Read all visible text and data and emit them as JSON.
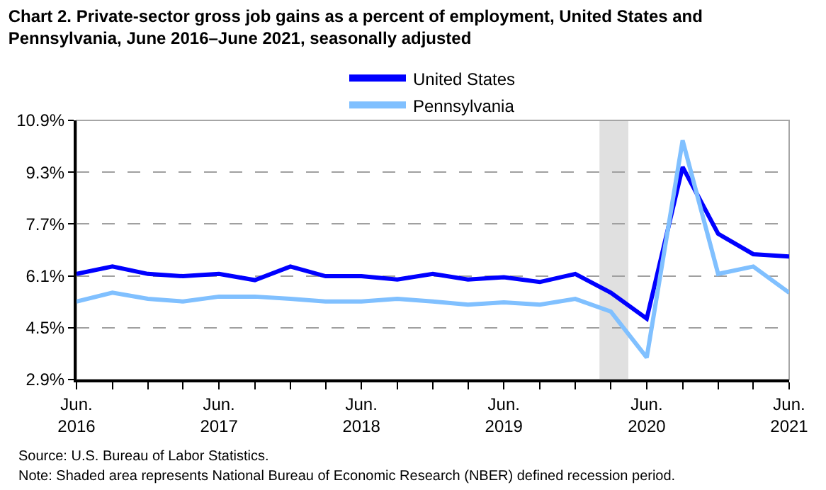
{
  "chart_data": {
    "type": "line",
    "title": "Chart 2. Private-sector gross job gains as a percent of employment, United States and Pennsylvania, June 2016–June 2021, seasonally adjusted",
    "x": [
      "2016-06",
      "2016-09",
      "2016-12",
      "2017-03",
      "2017-06",
      "2017-09",
      "2017-12",
      "2018-03",
      "2018-06",
      "2018-09",
      "2018-12",
      "2019-03",
      "2019-06",
      "2019-09",
      "2019-12",
      "2020-03",
      "2020-06",
      "2020-09",
      "2020-12",
      "2021-03",
      "2021-06"
    ],
    "series": [
      {
        "name": "United States",
        "color": "#0000ff",
        "values": [
          6.16,
          6.39,
          6.16,
          6.09,
          6.16,
          5.97,
          6.39,
          6.09,
          6.09,
          5.99,
          6.16,
          5.99,
          6.06,
          5.91,
          6.16,
          5.58,
          4.78,
          9.46,
          7.4,
          6.77,
          6.7
        ]
      },
      {
        "name": "Pennsylvania",
        "color": "#80c0ff",
        "values": [
          5.31,
          5.58,
          5.39,
          5.31,
          5.46,
          5.46,
          5.39,
          5.31,
          5.31,
          5.39,
          5.31,
          5.21,
          5.28,
          5.21,
          5.39,
          5.0,
          3.58,
          10.28,
          6.16,
          6.39,
          5.58
        ]
      }
    ],
    "xlim": [
      "2016-06",
      "2021-06"
    ],
    "xticks": [
      {
        "value": "2016-06",
        "label": "Jun.\n2016"
      },
      {
        "value": "2016-09",
        "label": null
      },
      {
        "value": "2016-12",
        "label": null
      },
      {
        "value": "2017-03",
        "label": null
      },
      {
        "value": "2017-06",
        "label": "Jun.\n2017"
      },
      {
        "value": "2017-09",
        "label": null
      },
      {
        "value": "2017-12",
        "label": null
      },
      {
        "value": "2018-03",
        "label": null
      },
      {
        "value": "2018-06",
        "label": "Jun.\n2018"
      },
      {
        "value": "2018-09",
        "label": null
      },
      {
        "value": "2018-12",
        "label": null
      },
      {
        "value": "2019-03",
        "label": null
      },
      {
        "value": "2019-06",
        "label": "Jun.\n2019"
      },
      {
        "value": "2019-09",
        "label": null
      },
      {
        "value": "2019-12",
        "label": null
      },
      {
        "value": "2020-03",
        "label": null
      },
      {
        "value": "2020-06",
        "label": "Jun.\n2020"
      },
      {
        "value": "2020-09",
        "label": null
      },
      {
        "value": "2020-12",
        "label": null
      },
      {
        "value": "2021-03",
        "label": null
      },
      {
        "value": "2021-06",
        "label": "Jun.\n2021"
      }
    ],
    "ylim": [
      2.9,
      10.9
    ],
    "yticks": [
      {
        "value": 2.9,
        "label": "2.9%"
      },
      {
        "value": 4.5,
        "label": "4.5%"
      },
      {
        "value": 6.1,
        "label": "6.1%"
      },
      {
        "value": 7.7,
        "label": "7.7%"
      },
      {
        "value": 9.3,
        "label": "9.3%"
      },
      {
        "value": 10.9,
        "label": "10.9%"
      }
    ],
    "bands": [
      {
        "axis": "x",
        "from": "2020-02-01",
        "to": "2020-04-15",
        "color": "#e0e0e0"
      }
    ],
    "grid": "y",
    "legend": "top",
    "marker": "none",
    "line_style": "solid",
    "annotations": [
      "Source: U.S. Bureau of Labor Statistics.",
      "Note: Shaded area represents National Bureau of Economic Research (NBER) defined recession period."
    ]
  }
}
